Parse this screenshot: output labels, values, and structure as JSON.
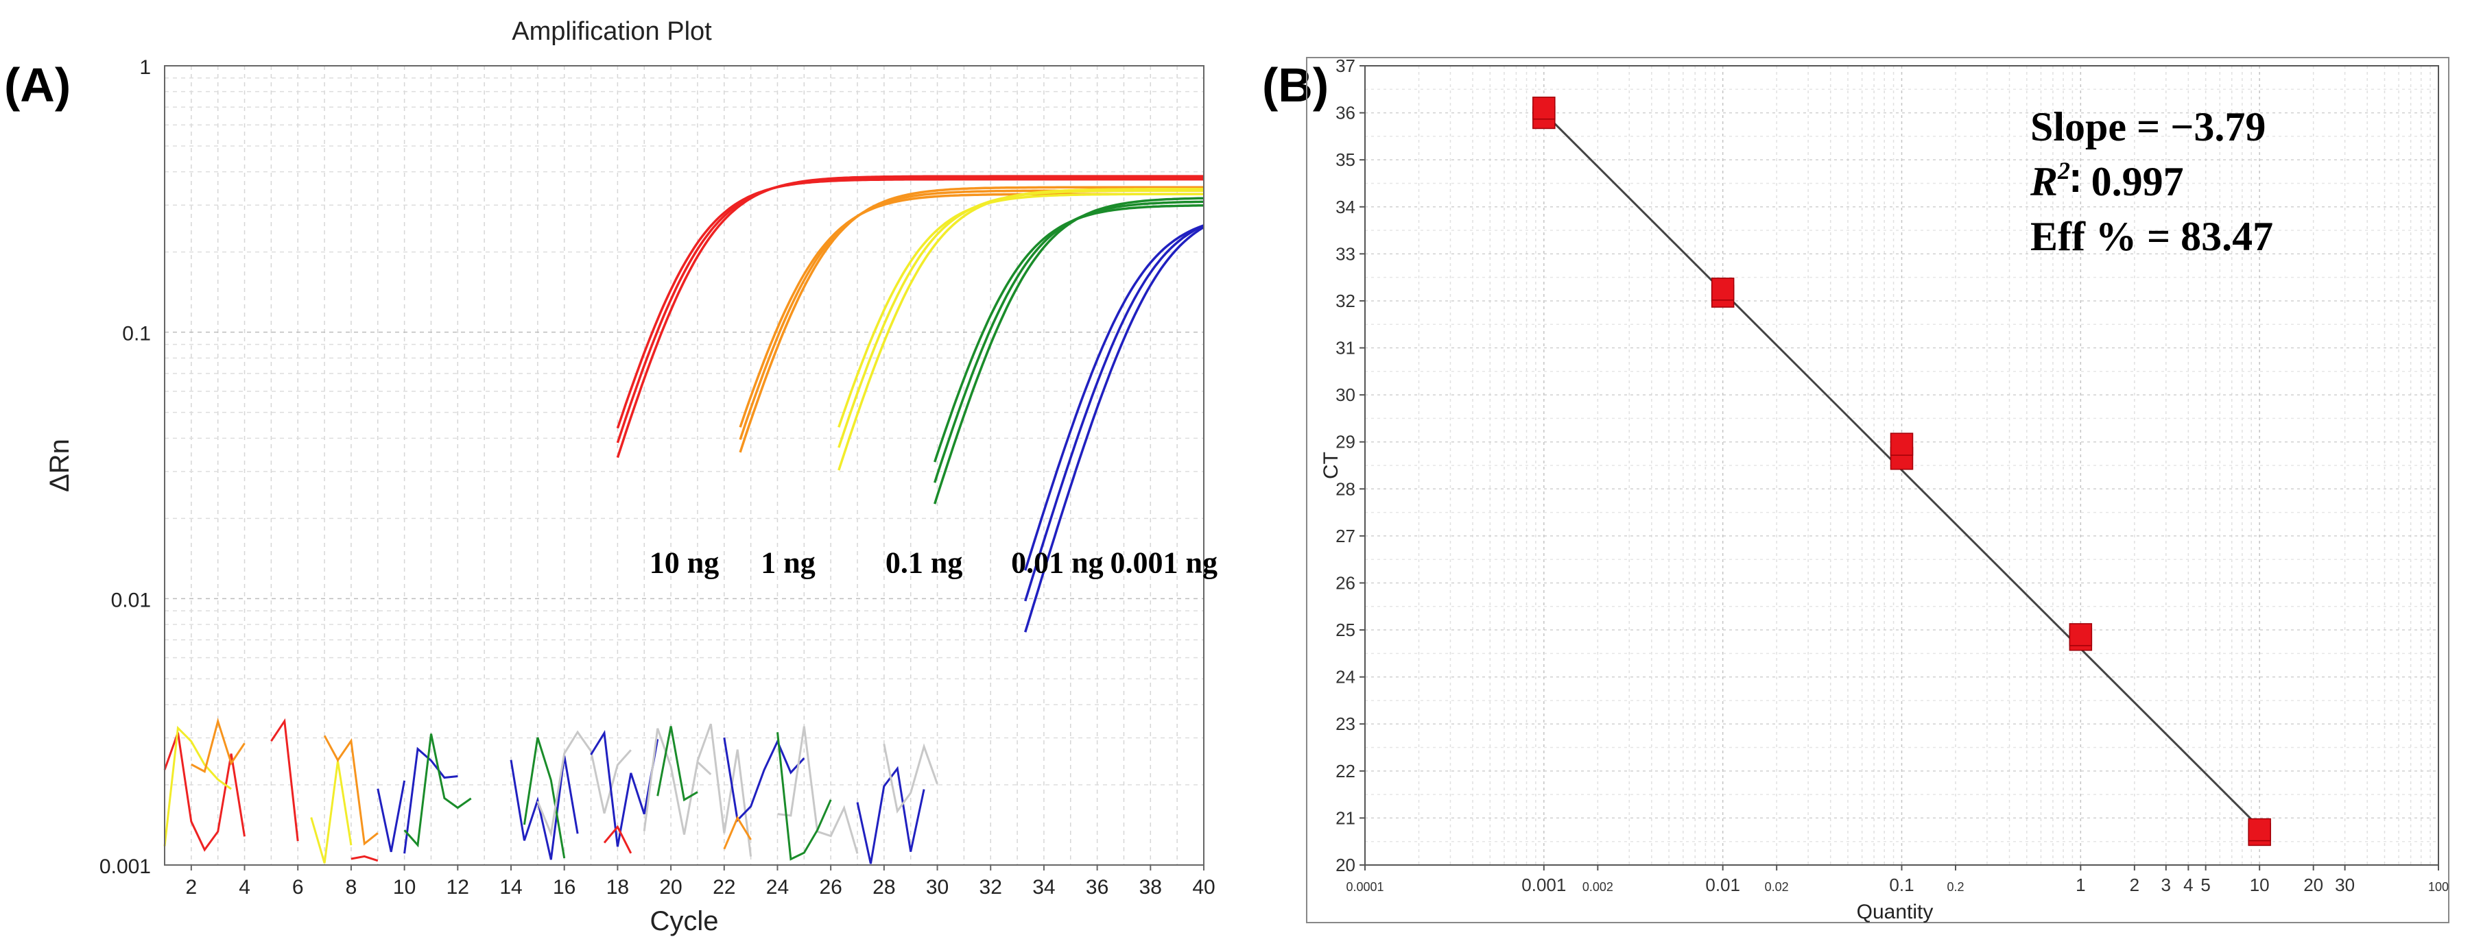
{
  "panels": {
    "a_label": "(A)",
    "b_label": "(B)"
  },
  "chart_data": [
    {
      "type": "line",
      "title": "Amplification Plot",
      "xlabel": "Cycle",
      "ylabel": "ΔRn",
      "yscale": "log",
      "xlim": [
        1,
        40
      ],
      "ylim": [
        0.001,
        1
      ],
      "x_ticks": [
        "2",
        "4",
        "6",
        "8",
        "10",
        "12",
        "14",
        "16",
        "18",
        "20",
        "22",
        "24",
        "26",
        "28",
        "30",
        "32",
        "34",
        "36",
        "38",
        "40"
      ],
      "y_ticks": [
        "0.001",
        "0.01",
        "0.1",
        "1"
      ],
      "grid": true,
      "colors": {
        "10 ng": "#ee2222",
        "1 ng": "#f7941d",
        "0.1 ng": "#f2ec2a",
        "0.01 ng": "#1a8c2a",
        "0.001 ng": "#2020c0",
        "noise": "#c8c8c8"
      },
      "series": [
        {
          "name": "10 ng",
          "color": "#ee2222",
          "start_cycle": 18,
          "start_value": 0.0025,
          "curves": [
            {
              "midpoint": 20.6,
              "plateau": 0.375
            },
            {
              "midpoint": 20.8,
              "plateau": 0.38
            },
            {
              "midpoint": 21.0,
              "plateau": 0.385
            }
          ]
        },
        {
          "name": "1 ng",
          "color": "#f7941d",
          "start_cycle": 22.6,
          "start_value": 0.0018,
          "curves": [
            {
              "midpoint": 25.0,
              "plateau": 0.33
            },
            {
              "midpoint": 25.2,
              "plateau": 0.34
            },
            {
              "midpoint": 25.4,
              "plateau": 0.35
            }
          ]
        },
        {
          "name": "0.1 ng",
          "color": "#f2ec2a",
          "start_cycle": 26.3,
          "start_value": 0.0012,
          "curves": [
            {
              "midpoint": 28.7,
              "plateau": 0.33
            },
            {
              "midpoint": 29.0,
              "plateau": 0.34
            },
            {
              "midpoint": 29.3,
              "plateau": 0.345
            }
          ]
        },
        {
          "name": "0.01 ng",
          "color": "#1a8c2a",
          "start_cycle": 29.9,
          "start_value": 0.0035,
          "curves": [
            {
              "midpoint": 32.6,
              "plateau": 0.3
            },
            {
              "midpoint": 32.9,
              "plateau": 0.31
            },
            {
              "midpoint": 33.2,
              "plateau": 0.32
            }
          ]
        },
        {
          "name": "0.001 ng",
          "color": "#2020c0",
          "start_cycle": 33.3,
          "start_value": 0.0013,
          "curves": [
            {
              "midpoint": 37.2,
              "plateau": 0.28
            },
            {
              "midpoint": 37.6,
              "plateau": 0.29
            },
            {
              "midpoint": 38.0,
              "plateau": 0.3
            }
          ]
        }
      ],
      "labels": [
        {
          "text": "10 ng",
          "cycle": 20.5,
          "value": 0.0125
        },
        {
          "text": "1 ng",
          "cycle": 24.4,
          "value": 0.0125
        },
        {
          "text": "0.1 ng",
          "cycle": 29.5,
          "value": 0.0125
        },
        {
          "text": "0.01 ng",
          "cycle": 34.5,
          "value": 0.0125
        },
        {
          "text": "0.001 ng",
          "cycle": 38.5,
          "value": 0.0125
        }
      ]
    },
    {
      "type": "scatter",
      "xlabel": "Quantity",
      "ylabel": "CT",
      "xscale": "log",
      "xlim": [
        0.0001,
        100
      ],
      "ylim": [
        20,
        37
      ],
      "x_ticks": [
        {
          "value": 0.0001,
          "label": "0.0001"
        },
        {
          "value": 0.001,
          "label": "0.001"
        },
        {
          "value": 0.002,
          "label": "0.002"
        },
        {
          "value": 0.01,
          "label": "0.01"
        },
        {
          "value": 0.02,
          "label": "0.02"
        },
        {
          "value": 0.1,
          "label": "0.1"
        },
        {
          "value": 0.2,
          "label": "0.2"
        },
        {
          "value": 1,
          "label": "1"
        },
        {
          "value": 2,
          "label": "2"
        },
        {
          "value": 3,
          "label": "3"
        },
        {
          "value": 4,
          "label": "4"
        },
        {
          "value": 5,
          "label": "5"
        },
        {
          "value": 10,
          "label": "10"
        },
        {
          "value": 20,
          "label": "20"
        },
        {
          "value": 30,
          "label": "30"
        },
        {
          "value": 100,
          "label": "100"
        }
      ],
      "y_ticks": [
        "20",
        "21",
        "22",
        "23",
        "24",
        "25",
        "26",
        "27",
        "28",
        "29",
        "30",
        "31",
        "32",
        "33",
        "34",
        "35",
        "36",
        "37"
      ],
      "grid": true,
      "points": [
        {
          "quantity": 0.001,
          "ct": 35.9
        },
        {
          "quantity": 0.001,
          "ct": 36.1
        },
        {
          "quantity": 0.01,
          "ct": 32.1
        },
        {
          "quantity": 0.01,
          "ct": 32.25
        },
        {
          "quantity": 0.1,
          "ct": 28.65
        },
        {
          "quantity": 0.1,
          "ct": 28.95
        },
        {
          "quantity": 1,
          "ct": 24.8
        },
        {
          "quantity": 1,
          "ct": 24.9
        },
        {
          "quantity": 10,
          "ct": 20.65
        },
        {
          "quantity": 10,
          "ct": 20.75
        }
      ],
      "regression": {
        "x_from": 0.001,
        "x_to": 10,
        "ct_from": 36.0,
        "ct_to": 20.8
      },
      "stats": {
        "slope": "Slope = −3.79",
        "r2_label": "R",
        "r2_sup": "2",
        "r2_value": "∶ 0.997",
        "efficiency": "Eff % = 83.47"
      },
      "marker_color": "#e8141c"
    }
  ]
}
